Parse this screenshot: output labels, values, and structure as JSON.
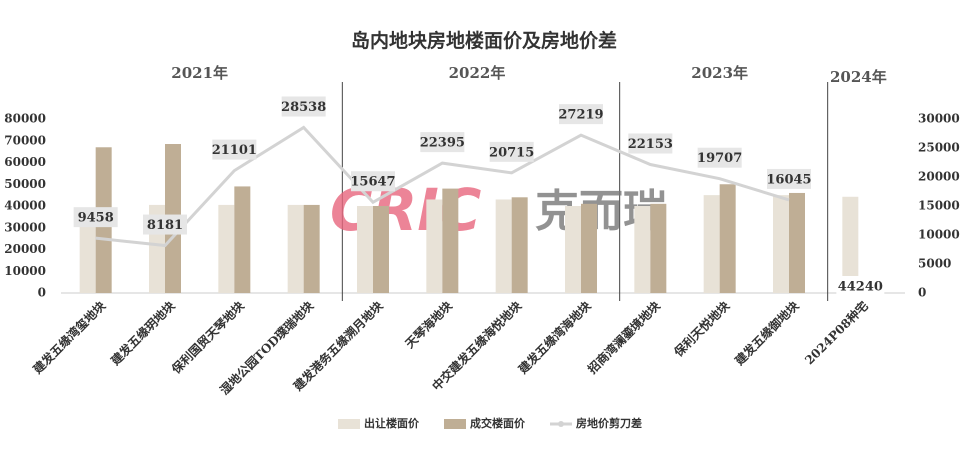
{
  "chart_data": {
    "type": "bar-line",
    "title": "岛内地块房地楼面价及房地价差",
    "watermark": {
      "latin": "CRIC",
      "chinese": "克而瑞"
    },
    "periods": [
      {
        "label": "2021年",
        "count": 4
      },
      {
        "label": "2022年",
        "count": 4
      },
      {
        "label": "2023年",
        "count": 3
      },
      {
        "label": "2024年",
        "count": 1
      }
    ],
    "categories": [
      "建发五缘湾玺地块",
      "建发五缘玥地块",
      "保利国贸天琴地块",
      "湿地公园TOD璞瑞地块",
      "建发港务五缘溯月地块",
      "天琴海地块",
      "中交建发五缘海悦地块",
      "建发五缘湾海地块",
      "招商湾澜鎏境地块",
      "保利天悦地块",
      "建发五缘御地块",
      "2024P08种宅"
    ],
    "series": [
      {
        "name": "出让楼面价",
        "type": "bar",
        "color": "#e8e2d7",
        "values": [
          38000,
          40500,
          40500,
          40500,
          40000,
          43000,
          43000,
          40000,
          40000,
          45000,
          45000,
          44240
        ],
        "value_labels": [
          null,
          null,
          null,
          null,
          null,
          null,
          null,
          null,
          null,
          null,
          null,
          "44240"
        ]
      },
      {
        "name": "成交楼面价",
        "type": "bar",
        "color": "#bfae95",
        "values": [
          67000,
          68500,
          49000,
          40500,
          40000,
          48000,
          44000,
          41000,
          41000,
          50000,
          46000,
          null
        ]
      },
      {
        "name": "房地价剪刀差",
        "type": "line",
        "axis": "y2",
        "color": "#d3d3d3",
        "values": [
          9458,
          8181,
          21101,
          28538,
          15647,
          22395,
          20715,
          27219,
          22153,
          19707,
          16045,
          null
        ]
      }
    ],
    "ylim": [
      0,
      80000
    ],
    "yticks": [
      0,
      10000,
      20000,
      30000,
      40000,
      50000,
      60000,
      70000,
      80000
    ],
    "y2lim": [
      0,
      30000
    ],
    "y2ticks": [
      0,
      5000,
      10000,
      15000,
      20000,
      25000,
      30000
    ],
    "legend": "bottom"
  }
}
